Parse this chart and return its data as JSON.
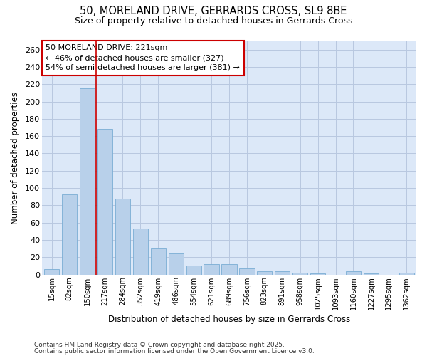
{
  "title1": "50, MORELAND DRIVE, GERRARDS CROSS, SL9 8BE",
  "title2": "Size of property relative to detached houses in Gerrards Cross",
  "xlabel": "Distribution of detached houses by size in Gerrards Cross",
  "ylabel": "Number of detached properties",
  "categories": [
    "15sqm",
    "82sqm",
    "150sqm",
    "217sqm",
    "284sqm",
    "352sqm",
    "419sqm",
    "486sqm",
    "554sqm",
    "621sqm",
    "689sqm",
    "756sqm",
    "823sqm",
    "891sqm",
    "958sqm",
    "1025sqm",
    "1093sqm",
    "1160sqm",
    "1227sqm",
    "1295sqm",
    "1362sqm"
  ],
  "values": [
    6,
    93,
    215,
    168,
    88,
    53,
    30,
    24,
    10,
    12,
    12,
    7,
    4,
    4,
    2,
    1,
    0,
    4,
    1,
    0,
    2
  ],
  "bar_color": "#b8d0ea",
  "bar_edge_color": "#7aadd4",
  "vline_x_index": 2.5,
  "vline_color": "#cc0000",
  "annotation_text": "50 MORELAND DRIVE: 221sqm\n← 46% of detached houses are smaller (327)\n54% of semi-detached houses are larger (381) →",
  "annotation_box_color": "white",
  "annotation_box_edge": "#cc0000",
  "ylim": [
    0,
    270
  ],
  "yticks": [
    0,
    20,
    40,
    60,
    80,
    100,
    120,
    140,
    160,
    180,
    200,
    220,
    240,
    260
  ],
  "grid_color": "#b8c8e0",
  "plot_bg_color": "#dce8f8",
  "fig_bg_color": "#ffffff",
  "footer1": "Contains HM Land Registry data © Crown copyright and database right 2025.",
  "footer2": "Contains public sector information licensed under the Open Government Licence v3.0."
}
